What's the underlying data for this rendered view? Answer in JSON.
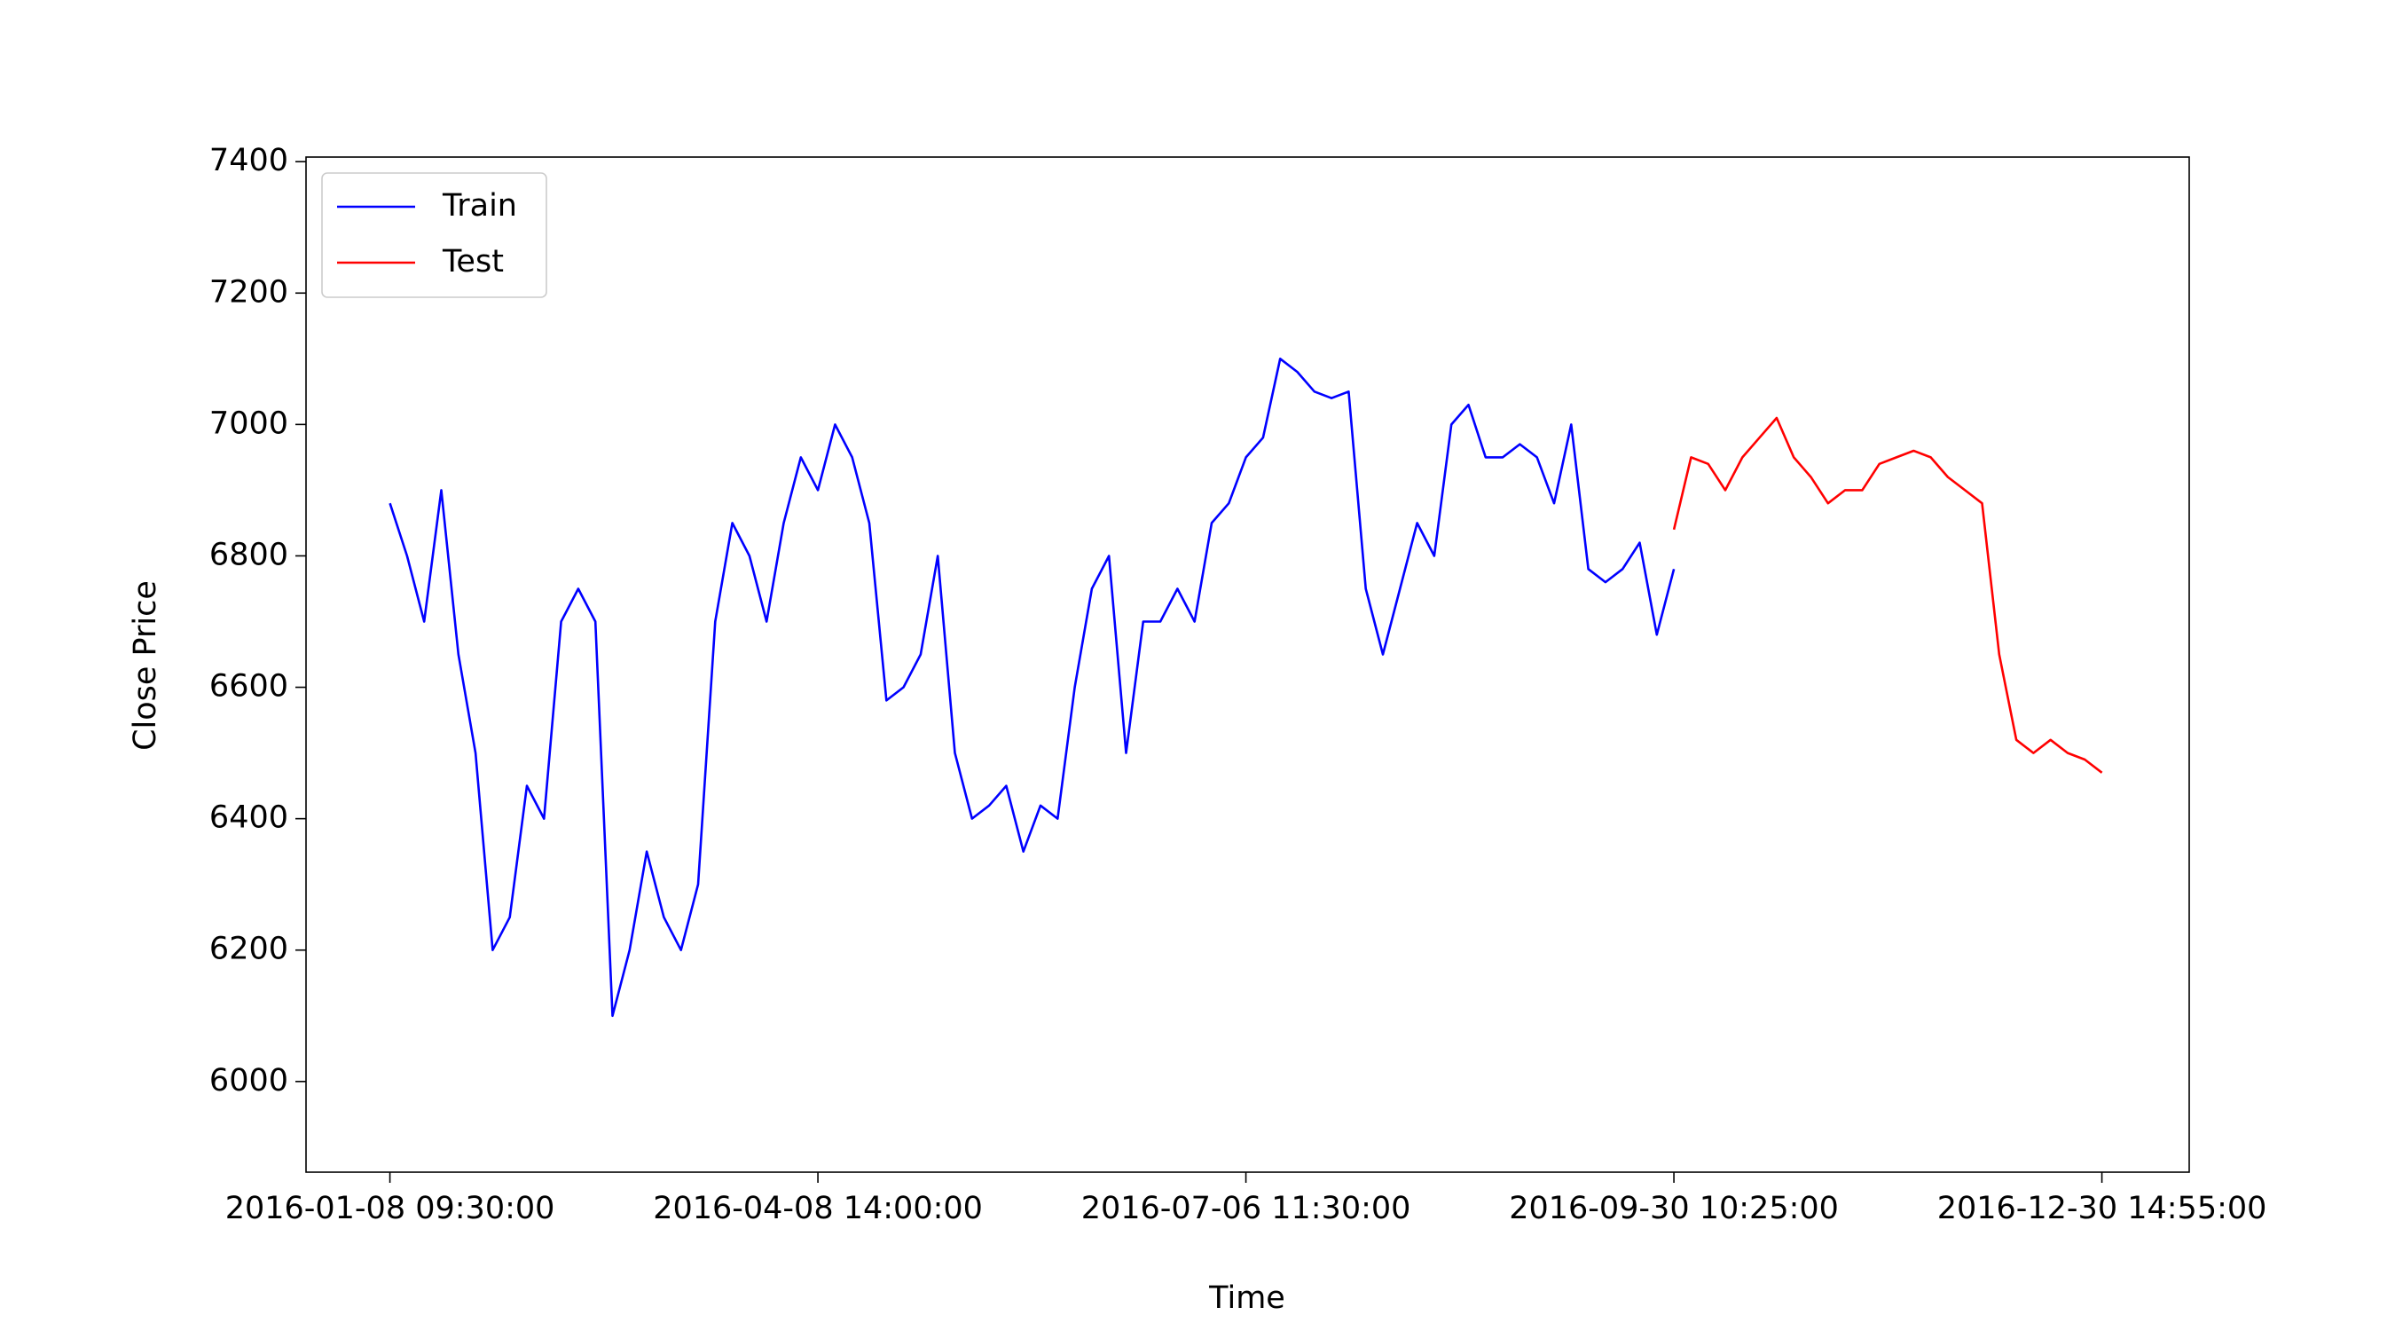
{
  "chart_data": {
    "type": "line",
    "xlabel": "Time",
    "ylabel": "Close Price",
    "x": [
      0,
      10,
      20,
      30,
      40,
      50,
      60,
      70,
      80,
      90,
      100,
      110,
      120,
      130,
      140,
      150,
      160,
      170,
      180,
      190,
      200,
      210,
      220,
      230,
      240,
      250,
      260,
      270,
      280,
      290,
      300,
      310,
      320,
      330,
      340,
      350,
      360,
      370,
      380,
      390,
      400,
      410,
      420,
      430,
      440,
      450,
      460,
      470,
      480,
      490,
      500,
      510,
      520,
      530,
      540,
      550,
      560,
      570,
      580,
      590,
      600,
      610,
      620,
      630,
      640,
      650,
      660,
      670,
      680,
      690,
      700,
      710,
      720,
      730,
      740,
      750,
      760,
      770,
      780,
      790,
      800,
      810,
      820,
      830,
      840,
      850,
      860,
      870,
      880,
      890,
      900,
      910,
      920,
      930,
      940,
      950,
      960,
      970,
      980,
      990,
      1000
    ],
    "series": [
      {
        "name": "Train",
        "color": "#0000ff",
        "values": [
          6880,
          6800,
          6700,
          6900,
          6650,
          6500,
          6200,
          6250,
          6450,
          6400,
          6700,
          6750,
          6700,
          6100,
          6200,
          6350,
          6250,
          6200,
          6300,
          6700,
          6850,
          6800,
          6700,
          6850,
          6950,
          6900,
          7000,
          6950,
          6850,
          6580,
          6600,
          6650,
          6800,
          6500,
          6400,
          6420,
          6450,
          6350,
          6420,
          6400,
          6600,
          6750,
          6800,
          6500,
          6700,
          6700,
          6750,
          6700,
          6850,
          6880,
          6950,
          6980,
          7100,
          7080,
          7050,
          7040,
          7050,
          6750,
          6650,
          6750,
          6850,
          6800,
          7000,
          7030,
          6950,
          6950,
          6970,
          6950,
          6880,
          7000,
          6780,
          6760,
          6780,
          6820,
          6680,
          6780,
          null,
          null,
          null,
          null,
          null,
          null,
          null,
          null,
          null,
          null,
          null,
          null,
          null,
          null,
          null,
          null,
          null,
          null,
          null,
          null,
          null,
          null,
          null,
          null,
          null
        ]
      },
      {
        "name": "Test",
        "color": "#ff0000",
        "values": [
          null,
          null,
          null,
          null,
          null,
          null,
          null,
          null,
          null,
          null,
          null,
          null,
          null,
          null,
          null,
          null,
          null,
          null,
          null,
          null,
          null,
          null,
          null,
          null,
          null,
          null,
          null,
          null,
          null,
          null,
          null,
          null,
          null,
          null,
          null,
          null,
          null,
          null,
          null,
          null,
          null,
          null,
          null,
          null,
          null,
          null,
          null,
          null,
          null,
          null,
          null,
          null,
          null,
          null,
          null,
          null,
          null,
          null,
          null,
          null,
          null,
          null,
          null,
          null,
          null,
          null,
          null,
          null,
          null,
          null,
          null,
          null,
          null,
          null,
          null,
          6840,
          6950,
          6940,
          6900,
          6950,
          6980,
          7010,
          6950,
          6920,
          6880,
          6900,
          6900,
          6940,
          6950,
          6960,
          6950,
          6920,
          6900,
          6880,
          6650,
          6520,
          6500,
          6520,
          6500,
          6490,
          6470
        ]
      }
    ],
    "xlim": [
      -49,
      1051
    ],
    "ylim": [
      5862,
      7407
    ],
    "xticks": [
      {
        "value": 0,
        "label": "2016-01-08 09:30:00"
      },
      {
        "value": 250,
        "label": "2016-04-08 14:00:00"
      },
      {
        "value": 500,
        "label": "2016-07-06 11:30:00"
      },
      {
        "value": 750,
        "label": "2016-09-30 10:25:00"
      },
      {
        "value": 1000,
        "label": "2016-12-30 14:55:00"
      }
    ],
    "yticks": [
      6000,
      6200,
      6400,
      6600,
      6800,
      7000,
      7200,
      7400
    ],
    "legend": "upper left"
  }
}
